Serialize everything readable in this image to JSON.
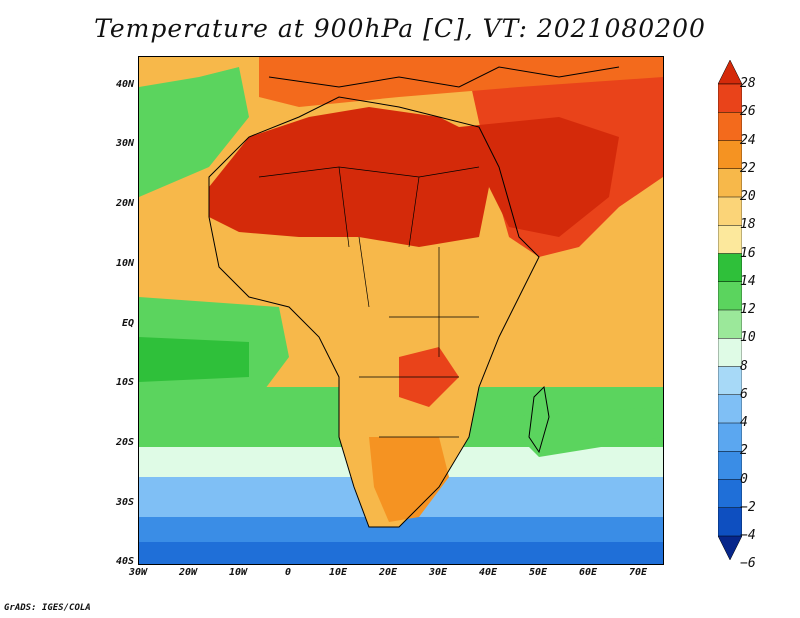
{
  "title": "Temperature at 900hPa [C], VT: 2021080200",
  "lat_labels": [
    "40N",
    "30N",
    "20N",
    "10N",
    "EQ",
    "10S",
    "20S",
    "30S",
    "40S"
  ],
  "lon_labels": [
    "30W",
    "20W",
    "10W",
    "0",
    "10E",
    "20E",
    "30E",
    "40E",
    "50E",
    "60E",
    "70E"
  ],
  "colorbar": {
    "labels": [
      "28",
      "26",
      "24",
      "22",
      "20",
      "18",
      "16",
      "14",
      "12",
      "10",
      "8",
      "6",
      "4",
      "2",
      "0",
      "−2",
      "−4",
      "−6"
    ],
    "colors": [
      "#d42a0a",
      "#e9431a",
      "#f36a1c",
      "#f59322",
      "#f7b84a",
      "#fbd478",
      "#fce89c",
      "#2fc03a",
      "#5bd45e",
      "#9be89a",
      "#dffbe6",
      "#a7d9f7",
      "#7fbff5",
      "#5ba7f0",
      "#3a8de6",
      "#1f6fd8",
      "#0e4fc0",
      "#07268a"
    ]
  },
  "credit": "GrADS: IGES/COLA"
}
